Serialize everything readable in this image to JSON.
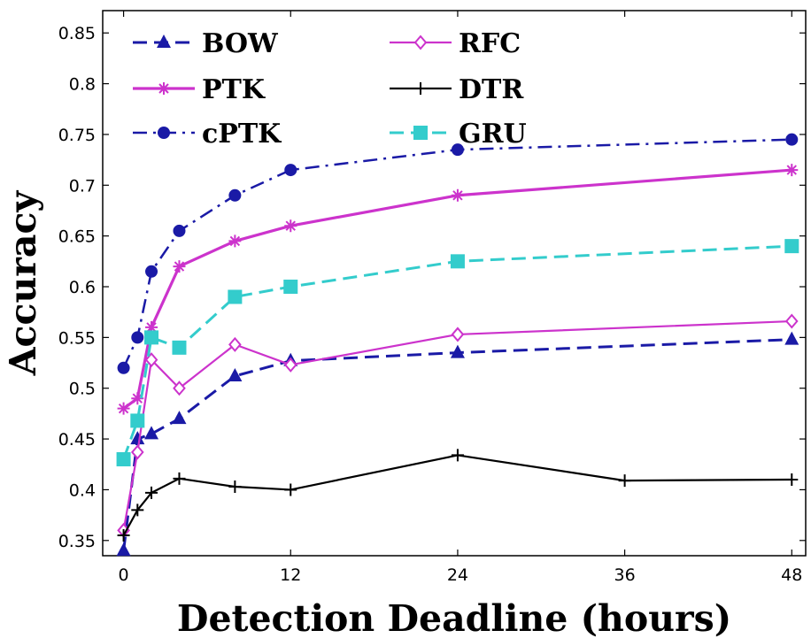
{
  "chart_data": {
    "type": "line",
    "xlabel": "Detection Deadline (hours)",
    "ylabel": "Accuracy",
    "xlim": [
      -1.5,
      49
    ],
    "ylim": [
      0.335,
      0.872
    ],
    "xticks": [
      0,
      12,
      24,
      36,
      48
    ],
    "xtick_labels": [
      "0",
      "12",
      "24",
      "36",
      "48"
    ],
    "yticks": [
      0.35,
      0.4,
      0.45,
      0.5,
      0.55,
      0.6,
      0.65,
      0.7,
      0.75,
      0.8,
      0.85
    ],
    "ytick_labels": [
      "0.35",
      "0.4",
      "0.45",
      "0.5",
      "0.55",
      "0.6",
      "0.65",
      "0.7",
      "0.75",
      "0.8",
      "0.85"
    ],
    "grid": false,
    "legend_position": "top-left",
    "series": [
      {
        "name": "BOW",
        "color": "#1a1aa6",
        "dash": "dashed",
        "marker": "triangle",
        "x": [
          0,
          1,
          2,
          4,
          8,
          12,
          24,
          48
        ],
        "y": [
          0.34,
          0.45,
          0.455,
          0.47,
          0.512,
          0.527,
          0.535,
          0.548
        ]
      },
      {
        "name": "RFC",
        "color": "#cc33cc",
        "dash": "solid",
        "marker": "diamond-open",
        "x": [
          0,
          1,
          2,
          4,
          8,
          12,
          24,
          48
        ],
        "y": [
          0.36,
          0.437,
          0.528,
          0.5,
          0.543,
          0.523,
          0.553,
          0.566
        ]
      },
      {
        "name": "PTK",
        "color": "#cc33cc",
        "dash": "solid-thick",
        "marker": "star",
        "x": [
          0,
          1,
          2,
          4,
          8,
          12,
          24,
          48
        ],
        "y": [
          0.48,
          0.49,
          0.56,
          0.62,
          0.645,
          0.66,
          0.69,
          0.715
        ]
      },
      {
        "name": "DTR",
        "color": "#000000",
        "dash": "solid",
        "marker": "plus",
        "x": [
          0,
          1,
          2,
          4,
          8,
          12,
          24,
          36,
          48
        ],
        "y": [
          0.355,
          0.38,
          0.397,
          0.411,
          0.403,
          0.4,
          0.434,
          0.409,
          0.41
        ]
      },
      {
        "name": "cPTK",
        "color": "#1a1aa6",
        "dash": "dashdot",
        "marker": "circle",
        "x": [
          0,
          1,
          2,
          4,
          8,
          12,
          24,
          48
        ],
        "y": [
          0.52,
          0.55,
          0.615,
          0.655,
          0.69,
          0.715,
          0.735,
          0.745
        ]
      },
      {
        "name": "GRU",
        "color": "#33cccc",
        "dash": "dashed",
        "marker": "square",
        "x": [
          0,
          1,
          2,
          4,
          8,
          12,
          24,
          48
        ],
        "y": [
          0.43,
          0.468,
          0.55,
          0.54,
          0.59,
          0.6,
          0.625,
          0.64
        ]
      }
    ]
  }
}
